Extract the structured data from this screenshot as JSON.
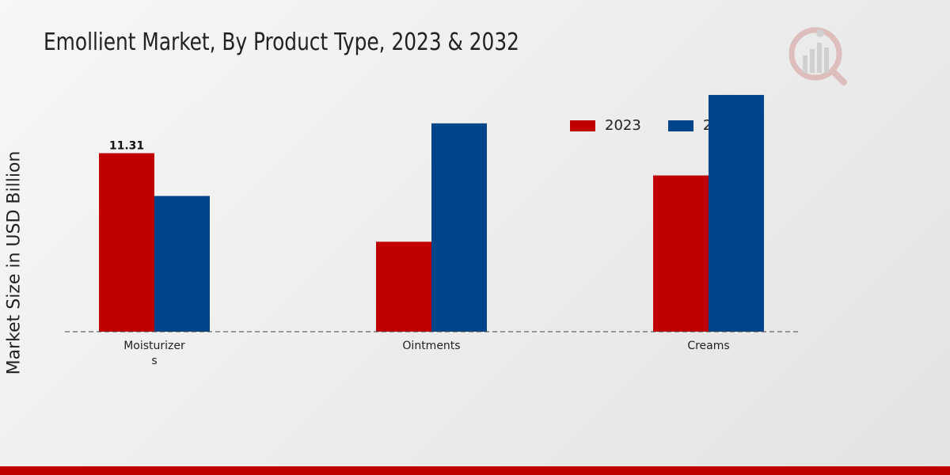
{
  "chart_data": {
    "type": "bar",
    "title": "Emollient Market, By Product Type, 2023 & 2032",
    "xlabel": "",
    "ylabel": "Market Size in USD Billion",
    "categories": [
      "Moisturizers",
      "Ointments",
      "Creams"
    ],
    "category_label_lines": [
      [
        "Moisturizer",
        "s"
      ],
      [
        "Ointments"
      ],
      [
        "Creams"
      ]
    ],
    "series": [
      {
        "name": "2023",
        "values": [
          11.31,
          5.7,
          9.9
        ],
        "color": "#c00000"
      },
      {
        "name": "2032",
        "values": [
          8.6,
          13.2,
          15.0
        ],
        "color": "#004589"
      }
    ],
    "data_labels": [
      {
        "series": 0,
        "index": 0,
        "text": "11.31"
      }
    ],
    "ylim": [
      0,
      16
    ],
    "grid": false,
    "legend_position": "top-right",
    "baseline_style": "dashed"
  }
}
